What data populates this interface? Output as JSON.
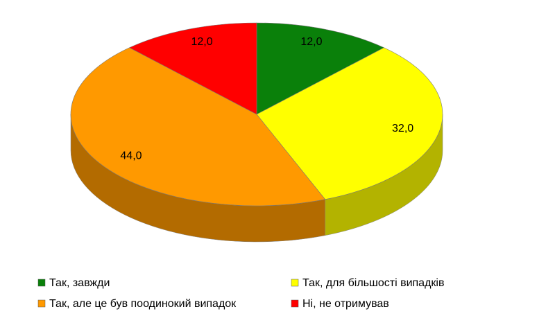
{
  "chart_data": {
    "type": "pie",
    "categories": [
      "Так, завжди",
      "Так, для більшості випадків",
      "Так, але це був поодинокий випадок",
      "Ні, не отримував"
    ],
    "values": [
      12.0,
      32.0,
      44.0,
      12.0
    ],
    "value_labels": [
      "12,0",
      "32,0",
      "44,0",
      "12,0"
    ],
    "colors": [
      "#0a800a",
      "#ffff00",
      "#ff9900",
      "#ff0000"
    ],
    "legend": "bottom"
  }
}
